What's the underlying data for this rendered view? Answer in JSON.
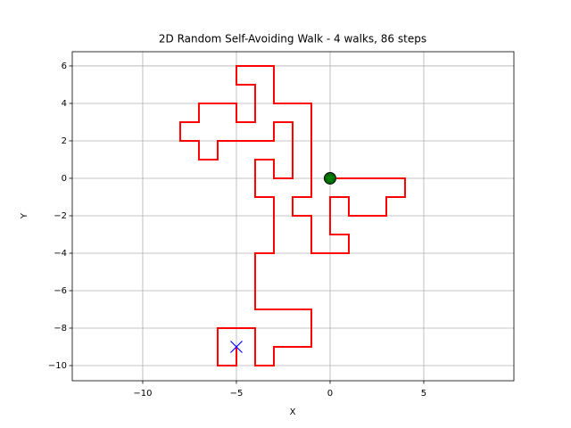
{
  "chart_data": {
    "type": "line",
    "title": "2D Random Self-Avoiding Walk - 4 walks, 86 steps",
    "x_label": "X",
    "y_label": "Y",
    "xlim": [
      -13.76,
      9.81
    ],
    "ylim": [
      -10.81,
      6.76
    ],
    "xticks": [
      {
        "value": -10,
        "label": "−10"
      },
      {
        "value": -5,
        "label": "−5"
      },
      0,
      5
    ],
    "yticks": [
      {
        "value": -10,
        "label": "−10"
      },
      {
        "value": -8,
        "label": "−8"
      },
      {
        "value": -6,
        "label": "−6"
      },
      {
        "value": -4,
        "label": "−4"
      },
      {
        "value": -2,
        "label": "−2"
      },
      0,
      2,
      4,
      6
    ],
    "grid": true,
    "series": [
      {
        "color": "#ff0000",
        "x": [
          0,
          4,
          4,
          3,
          3,
          1,
          1,
          0,
          0,
          1,
          1,
          -1,
          -1,
          -2,
          -2,
          -1,
          -1,
          -3,
          -3,
          -5,
          -5,
          -4,
          -4,
          -5,
          -5,
          -7,
          -7,
          -8,
          -8,
          -7,
          -7,
          -6,
          -6,
          -3,
          -3,
          -2,
          -2,
          -3,
          -3,
          -4,
          -4,
          -3,
          -3,
          -4,
          -4,
          -1,
          -1,
          -3,
          -3,
          -4,
          -4,
          -6,
          -6,
          -5,
          -5
        ],
        "values": [
          0,
          0,
          -1,
          -1,
          -2,
          -2,
          -1,
          -1,
          -3,
          -3,
          -4,
          -4,
          -2,
          -2,
          -1,
          -1,
          4,
          4,
          6,
          6,
          5,
          5,
          3,
          3,
          4,
          4,
          3,
          3,
          2,
          2,
          1,
          1,
          2,
          2,
          3,
          3,
          0,
          0,
          1,
          1,
          -1,
          -1,
          -4,
          -4,
          -7,
          -7,
          -9,
          -9,
          -10,
          -10,
          -8,
          -8,
          -10,
          -10,
          -9
        ]
      }
    ],
    "start": {
      "x": 0,
      "y": 0,
      "color": "#006400"
    },
    "end": {
      "x": -5,
      "y": -9,
      "color": "#0000ff"
    }
  }
}
